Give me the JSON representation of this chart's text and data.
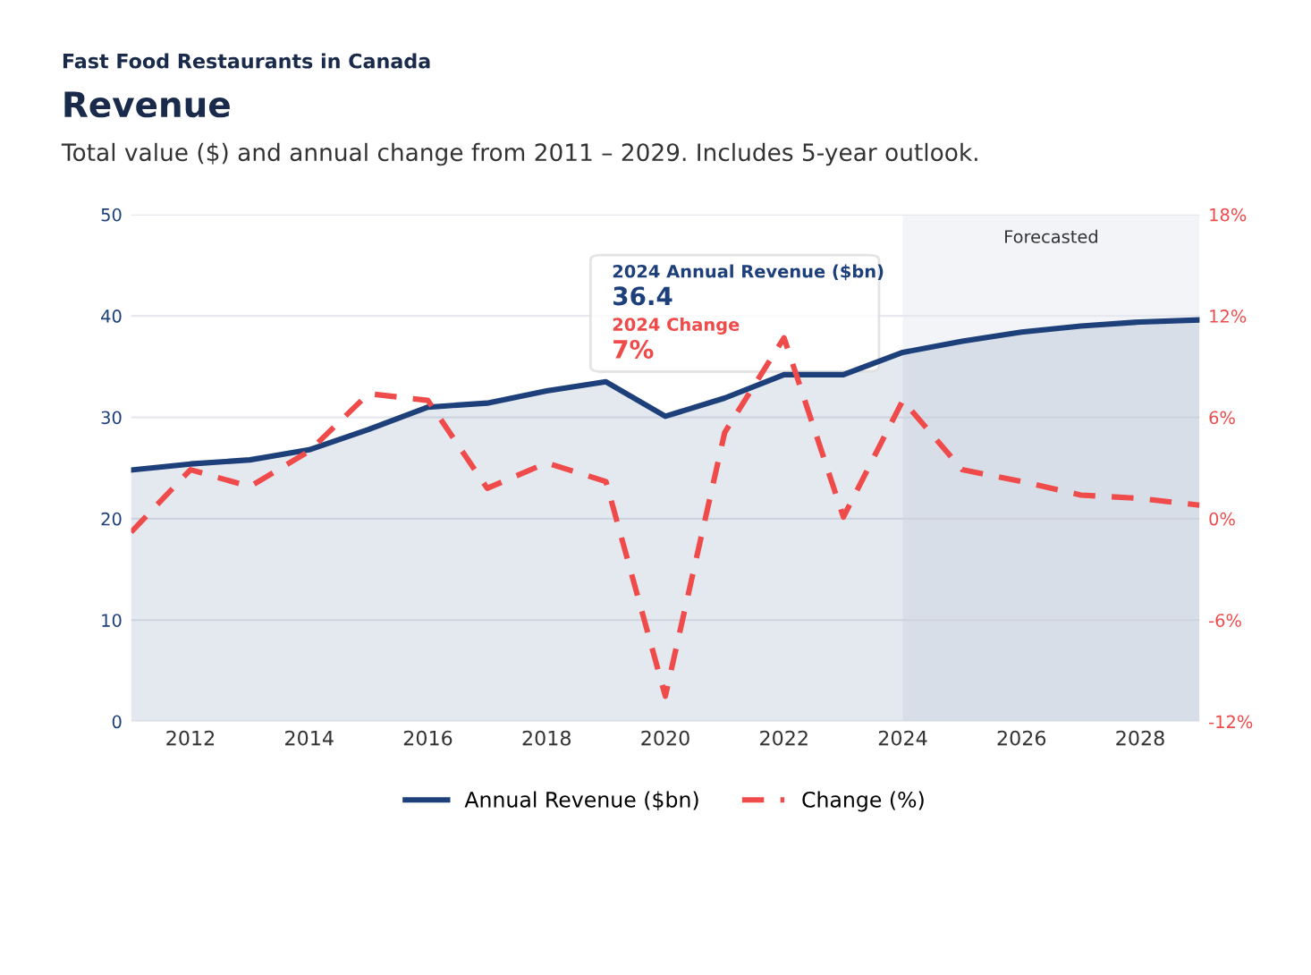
{
  "chart_data": {
    "type": "line",
    "title": "Revenue",
    "subtitle": "Total value ($) and annual change from 2011 – 2029. Includes 5-year outlook.",
    "annotations": [
      "Fast Food Restaurants in Canada",
      "2024 Annual Revenue ($bn)",
      "36.4",
      "2024 Change",
      "7%"
    ],
    "x": [
      2011,
      2012,
      2013,
      2014,
      2015,
      2016,
      2017,
      2018,
      2019,
      2020,
      2021,
      2022,
      2023,
      2024,
      2025,
      2026,
      2027,
      2028,
      2029
    ],
    "series": [
      {
        "name": "Annual Revenue ($bn)",
        "type": "area",
        "color": "#1d3f7a",
        "line_style": "solid",
        "values": [
          24.8,
          25.4,
          25.8,
          26.8,
          28.8,
          31.0,
          31.4,
          32.6,
          33.5,
          30.1,
          31.9,
          34.2,
          34.2,
          36.4,
          37.5,
          38.4,
          39.0,
          39.4,
          39.6
        ]
      },
      {
        "name": "Change (%)",
        "axis": "y2",
        "color": "#ef4b4b",
        "line_style": "dashed",
        "values": [
          -0.8,
          2.9,
          1.9,
          4.0,
          7.4,
          7.0,
          1.8,
          3.3,
          2.2,
          -10.5,
          5.1,
          10.7,
          0.1,
          7,
          2.9,
          2.2,
          1.4,
          1.2,
          0.8
        ]
      }
    ],
    "xlim": [
      2011,
      2029
    ],
    "xticks": [
      2012,
      2014,
      2016,
      2018,
      2020,
      2022,
      2024,
      2026,
      2028
    ],
    "ylim": [
      0,
      50
    ],
    "yticks": [
      0,
      10,
      20,
      30,
      40,
      50
    ],
    "y2lim": [
      -12,
      18
    ],
    "y2ticks": [
      {
        "value": -12,
        "label": "-12%"
      },
      {
        "value": -6,
        "label": "-6%"
      },
      {
        "value": 0,
        "label": "0%"
      },
      {
        "value": 6,
        "label": "6%"
      },
      {
        "value": 12,
        "label": "12%"
      },
      {
        "value": 18,
        "label": "18%"
      }
    ],
    "bands": [
      {
        "axis": "x",
        "from": 2024,
        "to": 2029,
        "label": "Forecasted",
        "color": "#f2f4f8"
      }
    ],
    "grid": "y",
    "legend": "bottom",
    "marker": "none"
  }
}
